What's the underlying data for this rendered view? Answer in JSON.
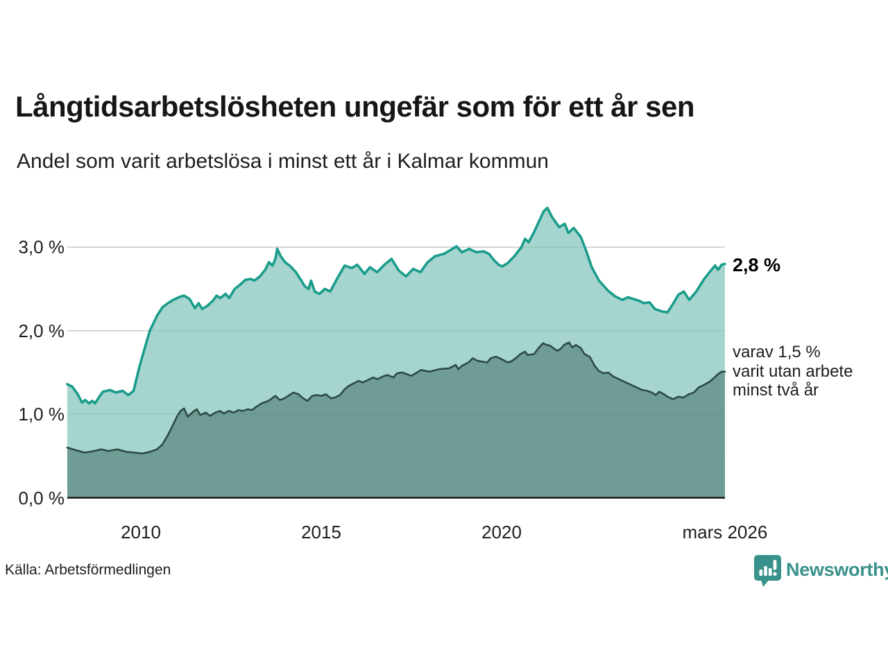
{
  "header": {
    "title": "Långtidsarbetslösheten ungefär som för ett år sen",
    "subtitle": "Andel som varit arbetslösa i minst ett år i Kalmar kommun"
  },
  "annotations": {
    "total_label": "2,8 %",
    "two_year_lines": [
      "varav 1,5 %",
      "varit utan arbete",
      "minst två år"
    ]
  },
  "footer": {
    "source": "Källa: Arbetsförmedlingen",
    "brand": "Newsworthy"
  },
  "colors": {
    "line_total": "#1a9c8b",
    "fill_total": "#a5d5ce",
    "line_two_year": "#2d4a45",
    "fill_two_year": "#6f9c94",
    "grid": "#d9d9d9",
    "grid_overlay": "rgba(45,75,70,0.10)",
    "axis": "#1a1a1a",
    "brand_teal": "#38918a"
  },
  "chart_data": {
    "type": "area",
    "title": "Långtidsarbetslösheten ungefär som för ett år sen",
    "subtitle": "Andel som varit arbetslösa i minst ett år i Kalmar kommun",
    "y_unit": "%",
    "ylim": [
      0,
      3.55
    ],
    "xlim": [
      2007.96,
      2026.19
    ],
    "grid": true,
    "legend": "none",
    "y_ticks": [
      {
        "label": "3,0 %",
        "value": 3.0
      },
      {
        "label": "2,0 %",
        "value": 2.0
      },
      {
        "label": "1,0 %",
        "value": 1.0
      },
      {
        "label": "0,0 %",
        "value": 0.0
      }
    ],
    "x_ticks": [
      {
        "label": "2010",
        "year": 2010
      },
      {
        "label": "2015",
        "year": 2015
      },
      {
        "label": "2020",
        "year": 2020
      },
      {
        "label": "mars 2026",
        "year": 2026.19
      }
    ],
    "series": [
      {
        "name": "Andel arbetslösa minst ett år",
        "end_value": 2.8,
        "end_label": "2,8 %",
        "x": [
          2007.96,
          2008.1,
          2008.25,
          2008.37,
          2008.46,
          2008.56,
          2008.65,
          2008.73,
          2008.85,
          2008.95,
          2009.15,
          2009.3,
          2009.5,
          2009.65,
          2009.8,
          2009.95,
          2010.1,
          2010.25,
          2010.45,
          2010.6,
          2010.75,
          2010.9,
          2011.05,
          2011.2,
          2011.35,
          2011.5,
          2011.6,
          2011.7,
          2011.85,
          2012.0,
          2012.1,
          2012.2,
          2012.35,
          2012.45,
          2012.6,
          2012.75,
          2012.9,
          2013.05,
          2013.15,
          2013.3,
          2013.45,
          2013.55,
          2013.65,
          2013.73,
          2013.78,
          2013.88,
          2014.0,
          2014.15,
          2014.3,
          2014.45,
          2014.55,
          2014.65,
          2014.72,
          2014.82,
          2014.95,
          2015.1,
          2015.25,
          2015.45,
          2015.65,
          2015.85,
          2016.0,
          2016.2,
          2016.35,
          2016.55,
          2016.75,
          2016.95,
          2017.15,
          2017.35,
          2017.55,
          2017.75,
          2017.95,
          2018.15,
          2018.4,
          2018.6,
          2018.75,
          2018.9,
          2019.1,
          2019.3,
          2019.5,
          2019.65,
          2019.8,
          2019.92,
          2020.02,
          2020.17,
          2020.35,
          2020.55,
          2020.65,
          2020.75,
          2020.9,
          2021.05,
          2021.17,
          2021.27,
          2021.4,
          2021.6,
          2021.75,
          2021.85,
          2022.0,
          2022.2,
          2022.35,
          2022.5,
          2022.7,
          2022.95,
          2023.15,
          2023.35,
          2023.5,
          2023.65,
          2023.8,
          2023.95,
          2024.1,
          2024.25,
          2024.45,
          2024.6,
          2024.75,
          2024.9,
          2025.05,
          2025.2,
          2025.4,
          2025.6,
          2025.8,
          2025.92,
          2026.0,
          2026.1,
          2026.19
        ],
        "y": [
          1.36,
          1.33,
          1.24,
          1.14,
          1.17,
          1.13,
          1.16,
          1.13,
          1.21,
          1.27,
          1.29,
          1.26,
          1.28,
          1.23,
          1.28,
          1.55,
          1.78,
          2.0,
          2.18,
          2.28,
          2.33,
          2.37,
          2.4,
          2.42,
          2.38,
          2.27,
          2.33,
          2.26,
          2.3,
          2.36,
          2.42,
          2.39,
          2.44,
          2.39,
          2.5,
          2.55,
          2.61,
          2.62,
          2.6,
          2.65,
          2.73,
          2.82,
          2.78,
          2.86,
          2.98,
          2.89,
          2.82,
          2.77,
          2.7,
          2.6,
          2.53,
          2.5,
          2.6,
          2.47,
          2.44,
          2.5,
          2.47,
          2.63,
          2.78,
          2.75,
          2.79,
          2.68,
          2.76,
          2.7,
          2.79,
          2.86,
          2.72,
          2.65,
          2.74,
          2.7,
          2.82,
          2.89,
          2.92,
          2.97,
          3.01,
          2.94,
          2.98,
          2.94,
          2.95,
          2.92,
          2.84,
          2.79,
          2.77,
          2.81,
          2.89,
          3.0,
          3.1,
          3.06,
          3.18,
          3.32,
          3.43,
          3.47,
          3.36,
          3.24,
          3.28,
          3.17,
          3.23,
          3.12,
          2.95,
          2.76,
          2.6,
          2.48,
          2.41,
          2.37,
          2.4,
          2.38,
          2.36,
          2.33,
          2.34,
          2.26,
          2.23,
          2.22,
          2.32,
          2.43,
          2.47,
          2.37,
          2.47,
          2.61,
          2.72,
          2.78,
          2.73,
          2.79,
          2.8
        ]
      },
      {
        "name": "Varav utan arbete minst två år",
        "end_value": 1.5,
        "end_label": "varav 1,5 % varit utan arbete minst två år",
        "x": [
          2007.96,
          2008.2,
          2008.45,
          2008.7,
          2008.9,
          2009.1,
          2009.35,
          2009.6,
          2009.85,
          2010.05,
          2010.25,
          2010.45,
          2010.6,
          2010.75,
          2010.9,
          2011.0,
          2011.1,
          2011.2,
          2011.3,
          2011.45,
          2011.55,
          2011.65,
          2011.8,
          2011.92,
          2012.07,
          2012.2,
          2012.3,
          2012.44,
          2012.58,
          2012.7,
          2012.83,
          2012.96,
          2013.08,
          2013.2,
          2013.35,
          2013.54,
          2013.73,
          2013.85,
          2013.98,
          2014.12,
          2014.23,
          2014.37,
          2014.5,
          2014.62,
          2014.75,
          2014.88,
          2015.0,
          2015.13,
          2015.27,
          2015.38,
          2015.52,
          2015.65,
          2015.77,
          2015.9,
          2016.04,
          2016.15,
          2016.3,
          2016.44,
          2016.55,
          2016.7,
          2016.83,
          2017.0,
          2017.1,
          2017.25,
          2017.5,
          2017.77,
          2018.0,
          2018.27,
          2018.54,
          2018.73,
          2018.8,
          2018.9,
          2019.08,
          2019.2,
          2019.33,
          2019.46,
          2019.6,
          2019.7,
          2019.85,
          2020.04,
          2020.17,
          2020.3,
          2020.42,
          2020.52,
          2020.65,
          2020.72,
          2020.9,
          2021.04,
          2021.15,
          2021.25,
          2021.35,
          2021.44,
          2021.54,
          2021.63,
          2021.73,
          2021.87,
          2021.96,
          2022.06,
          2022.2,
          2022.3,
          2022.44,
          2022.58,
          2022.69,
          2022.83,
          2022.96,
          2023.1,
          2023.3,
          2023.5,
          2023.7,
          2023.9,
          2024.04,
          2024.17,
          2024.27,
          2024.37,
          2024.5,
          2024.6,
          2024.75,
          2024.9,
          2025.04,
          2025.19,
          2025.33,
          2025.46,
          2025.6,
          2025.77,
          2025.9,
          2026.0,
          2026.1,
          2026.19
        ],
        "y": [
          0.6,
          0.57,
          0.54,
          0.56,
          0.58,
          0.56,
          0.58,
          0.55,
          0.54,
          0.53,
          0.55,
          0.58,
          0.64,
          0.75,
          0.88,
          0.97,
          1.04,
          1.07,
          0.97,
          1.03,
          1.06,
          0.99,
          1.02,
          0.98,
          1.02,
          1.04,
          1.01,
          1.04,
          1.02,
          1.05,
          1.04,
          1.06,
          1.05,
          1.09,
          1.13,
          1.16,
          1.22,
          1.17,
          1.19,
          1.23,
          1.26,
          1.24,
          1.19,
          1.16,
          1.22,
          1.23,
          1.22,
          1.24,
          1.19,
          1.2,
          1.23,
          1.3,
          1.34,
          1.37,
          1.4,
          1.38,
          1.41,
          1.44,
          1.42,
          1.45,
          1.47,
          1.44,
          1.49,
          1.5,
          1.46,
          1.53,
          1.51,
          1.54,
          1.55,
          1.59,
          1.54,
          1.58,
          1.62,
          1.67,
          1.64,
          1.63,
          1.62,
          1.67,
          1.69,
          1.65,
          1.62,
          1.64,
          1.68,
          1.72,
          1.75,
          1.71,
          1.72,
          1.8,
          1.85,
          1.83,
          1.82,
          1.79,
          1.76,
          1.78,
          1.83,
          1.86,
          1.8,
          1.83,
          1.79,
          1.72,
          1.69,
          1.58,
          1.52,
          1.49,
          1.5,
          1.45,
          1.41,
          1.37,
          1.33,
          1.29,
          1.28,
          1.26,
          1.23,
          1.27,
          1.24,
          1.21,
          1.18,
          1.21,
          1.2,
          1.24,
          1.26,
          1.32,
          1.35,
          1.39,
          1.44,
          1.48,
          1.51,
          1.51
        ]
      }
    ]
  }
}
